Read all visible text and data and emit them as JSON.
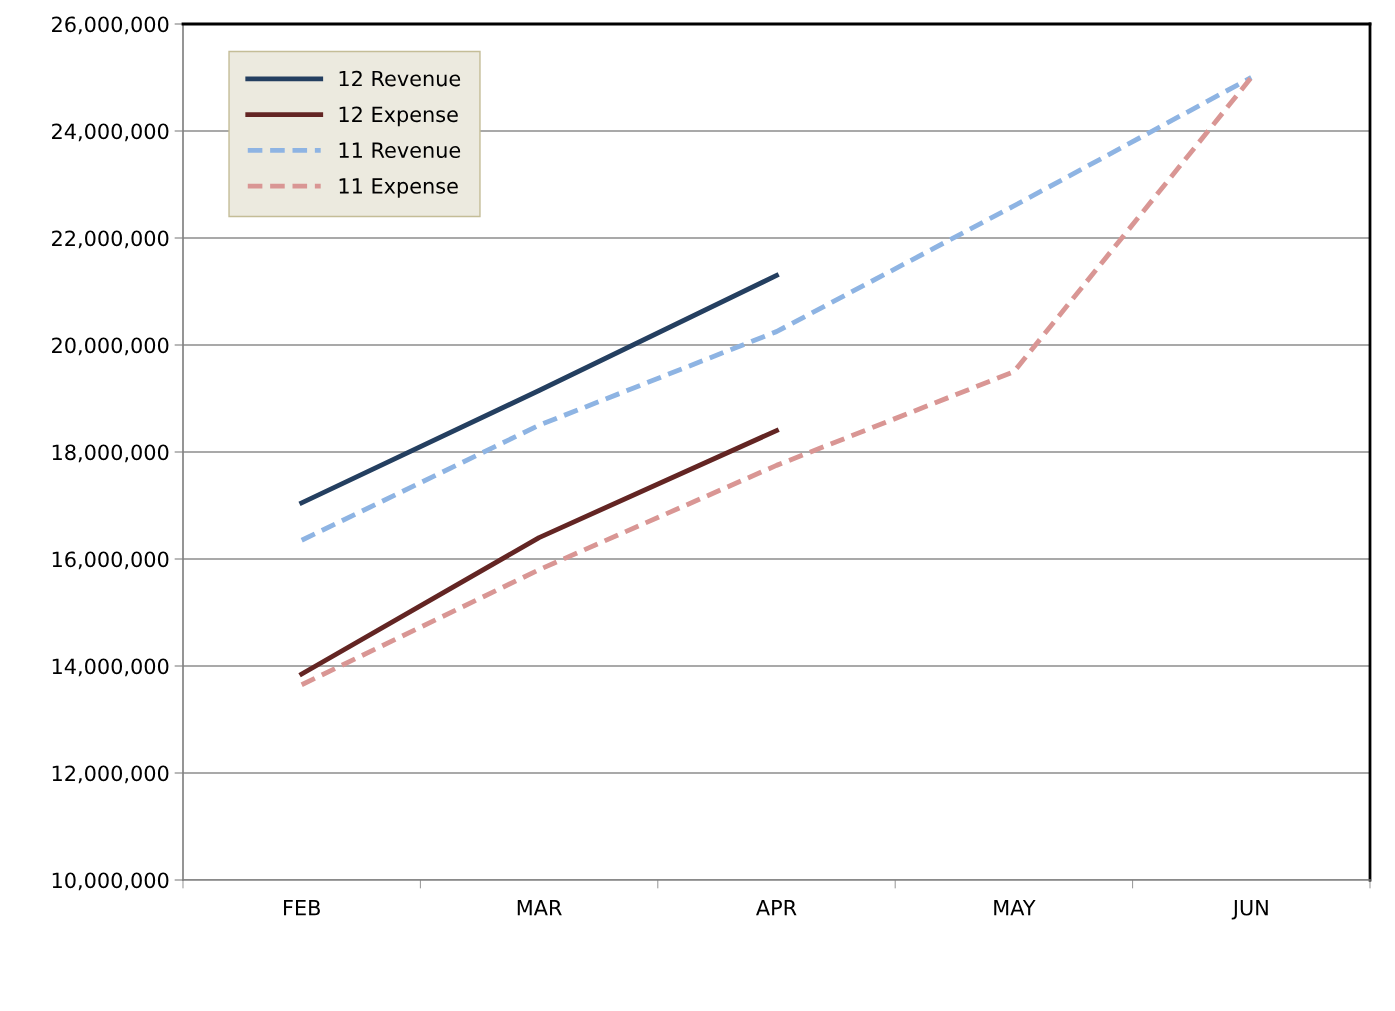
{
  "chart_data": {
    "type": "line",
    "categories": [
      "FEB",
      "MAR",
      "APR",
      "MAY",
      "JUN"
    ],
    "series": [
      {
        "name": "12 Revenue",
        "color": "#243f60",
        "line_style": "solid",
        "values": [
          17050000,
          19150000,
          21300000,
          null,
          null
        ]
      },
      {
        "name": "12 Expense",
        "color": "#632523",
        "line_style": "solid",
        "values": [
          13850000,
          16400000,
          18400000,
          null,
          null
        ]
      },
      {
        "name": "11 Revenue",
        "color": "#8eb4e3",
        "line_style": "dashed",
        "values": [
          16350000,
          18500000,
          20250000,
          22600000,
          25000000
        ]
      },
      {
        "name": "11 Expense",
        "color": "#d99694",
        "line_style": "dashed",
        "values": [
          13650000,
          15800000,
          17750000,
          19500000,
          25000000
        ]
      }
    ],
    "ylim": [
      10000000,
      26000000
    ],
    "yticks": [
      {
        "value": 10000000,
        "label": "10,000,000"
      },
      {
        "value": 12000000,
        "label": "12,000,000"
      },
      {
        "value": 14000000,
        "label": "14,000,000"
      },
      {
        "value": 16000000,
        "label": "16,000,000"
      },
      {
        "value": 18000000,
        "label": "18,000,000"
      },
      {
        "value": 20000000,
        "label": "20,000,000"
      },
      {
        "value": 22000000,
        "label": "22,000,000"
      },
      {
        "value": 24000000,
        "label": "24,000,000"
      },
      {
        "value": 26000000,
        "label": "26,000,000"
      }
    ],
    "grid": "y",
    "legend": "top left",
    "marker": "none"
  }
}
